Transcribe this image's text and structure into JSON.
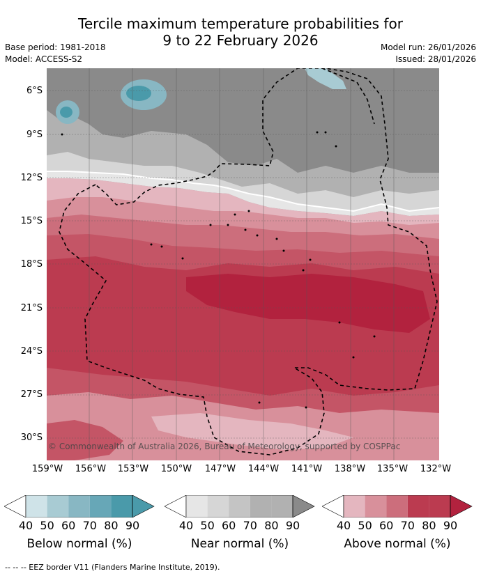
{
  "title": {
    "line1": "Tercile maximum temperature probabilities for",
    "line2": "9 to 22 February 2026"
  },
  "meta": {
    "base_period": "Base period: 1981-2018",
    "model": "Model: ACCESS-S2",
    "model_run": "Model run: 26/01/2026",
    "issued": "Issued: 28/01/2026"
  },
  "map": {
    "latitude_labels": [
      "6°S",
      "9°S",
      "12°S",
      "15°S",
      "18°S",
      "21°S",
      "24°S",
      "27°S",
      "30°S"
    ],
    "longitude_labels": [
      "159°W",
      "156°W",
      "153°W",
      "150°W",
      "147°W",
      "144°W",
      "141°W",
      "138°W",
      "135°W",
      "132°W"
    ],
    "latitude_range": [
      "4.5°S",
      "31.5°S"
    ],
    "longitude_range": [
      "159°W",
      "132°W"
    ],
    "copyright": "© Commonwealth of Australia 2026, Bureau of Meteorology, supported by COSPPac",
    "colors": {
      "below": [
        "#cfe3e8",
        "#a8cbd3",
        "#88b7c3",
        "#67a7b7",
        "#4a9aaa"
      ],
      "near": [
        "#e6e6e6",
        "#d6d6d6",
        "#c4c4c4",
        "#b1b1b1",
        "#9c9c9c",
        "#8a8a8a"
      ],
      "above": [
        "#e4b6bf",
        "#d8909b",
        "#cc6e7c",
        "#c45566",
        "#bb3b50",
        "#b2223e"
      ],
      "eez_line": "#000000"
    }
  },
  "legends": [
    {
      "label": "Below normal (%)",
      "ticks": [
        "40",
        "50",
        "60",
        "70",
        "80",
        "90"
      ],
      "colors": [
        "#ffffff",
        "#cfe3e8",
        "#a8cbd3",
        "#88b7c3",
        "#67a7b7",
        "#4a9aaa"
      ]
    },
    {
      "label": "Near normal (%)",
      "ticks": [
        "40",
        "50",
        "60",
        "70",
        "80",
        "90"
      ],
      "colors": [
        "#ffffff",
        "#e6e6e6",
        "#d6d6d6",
        "#c4c4c4",
        "#b1b1b1",
        "#8a8a8a"
      ]
    },
    {
      "label": "Above normal (%)",
      "ticks": [
        "40",
        "50",
        "60",
        "70",
        "80",
        "90"
      ],
      "colors": [
        "#ffffff",
        "#e4b6bf",
        "#d8909b",
        "#cc6e7c",
        "#bb3b50",
        "#b2223e"
      ]
    }
  ],
  "footer": {
    "eez_legend": "-- -- -- EEZ border V11 (Flanders Marine Institute, 2019)."
  }
}
